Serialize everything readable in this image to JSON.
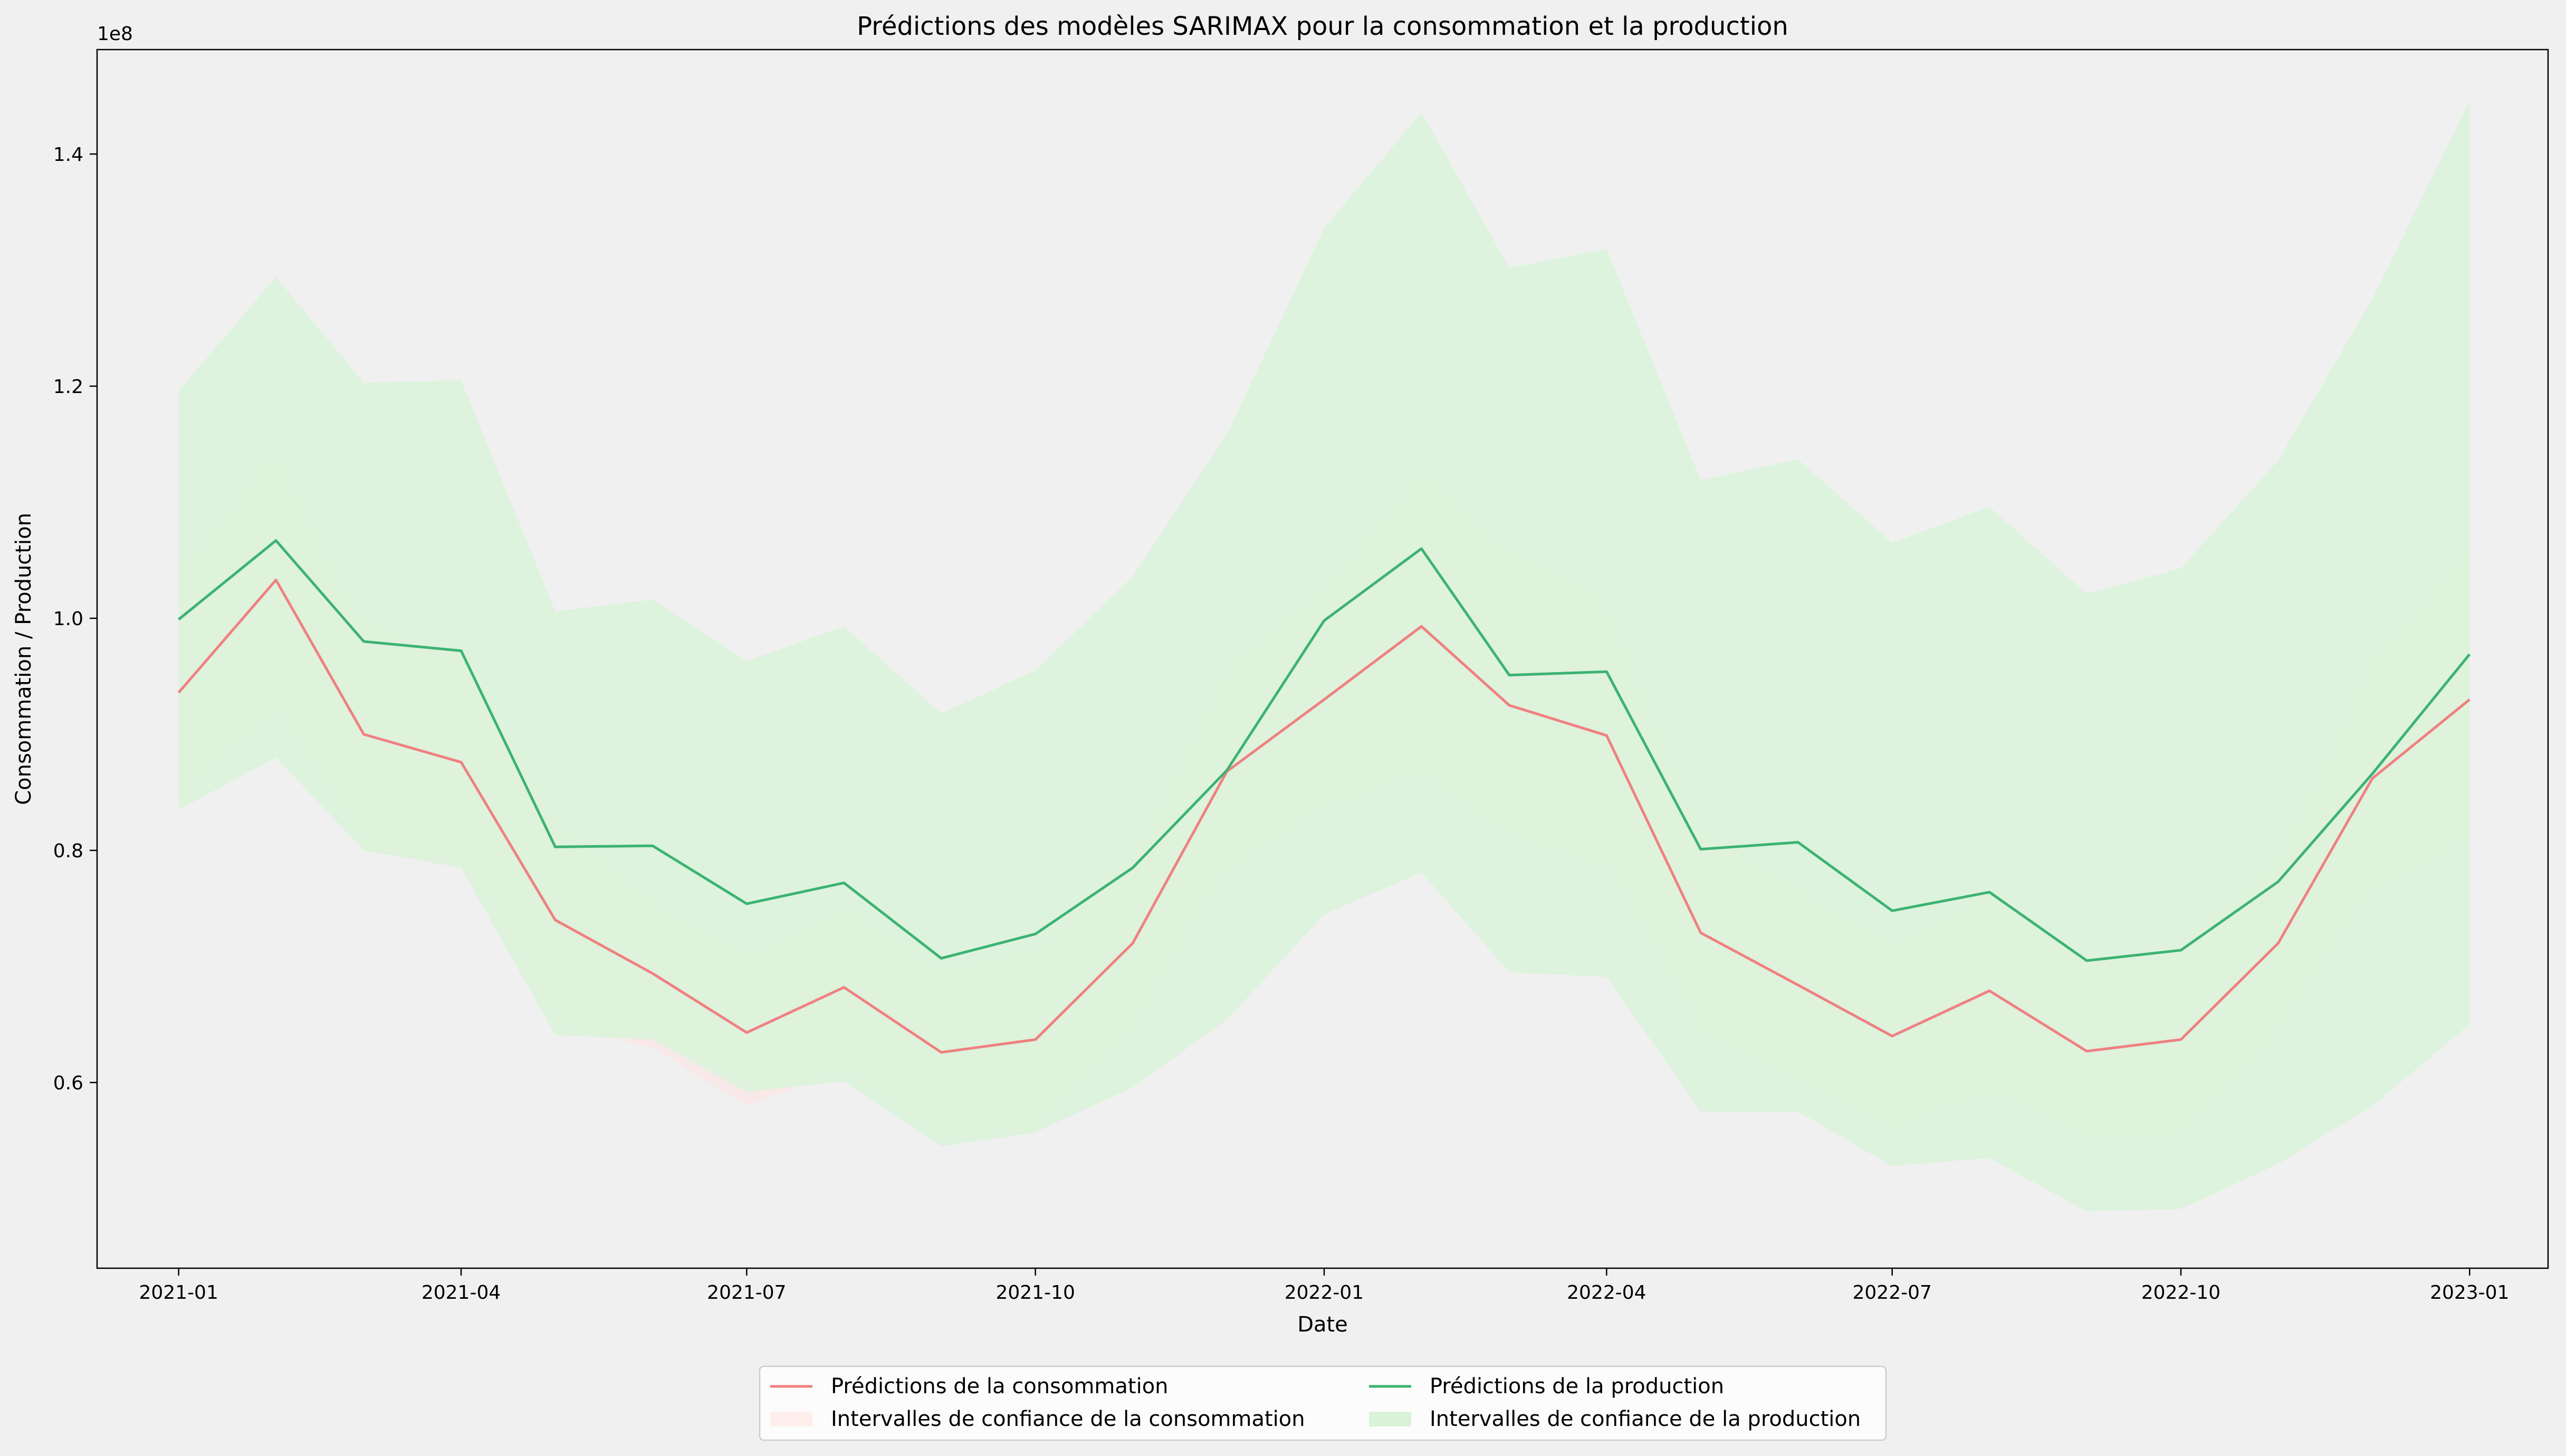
{
  "chart_data": {
    "type": "line",
    "title": "Prédictions des modèles SARIMAX pour la consommation et la production",
    "xlabel": "Date",
    "ylabel": "Consommation / Production",
    "y_multiplier_label": "1e8",
    "y_multiplier": 100000000,
    "ylim": [
      0.44,
      1.49
    ],
    "y_ticks": [
      0.6,
      0.8,
      1.0,
      1.2,
      1.4
    ],
    "y_tick_labels": [
      "0.6",
      "0.8",
      "1.0",
      "1.2",
      "1.4"
    ],
    "x_dates": [
      "2021-01",
      "2021-02",
      "2021-03",
      "2021-04",
      "2021-05",
      "2021-06",
      "2021-07",
      "2021-08",
      "2021-09",
      "2021-10",
      "2021-11",
      "2021-12",
      "2022-01",
      "2022-02",
      "2022-03",
      "2022-04",
      "2022-05",
      "2022-06",
      "2022-07",
      "2022-08",
      "2022-09",
      "2022-10",
      "2022-11",
      "2022-12",
      "2023-01"
    ],
    "x_ticks": [
      "2021-01",
      "2021-04",
      "2021-07",
      "2021-10",
      "2022-01",
      "2022-04",
      "2022-07",
      "2022-10",
      "2023-01"
    ],
    "xlim": [
      "2020-12-06",
      "2023-01-26"
    ],
    "grid": false,
    "legend_position": "bottom-center",
    "series": [
      {
        "name": "Prédictions de la consommation",
        "kind": "line",
        "color": "#f08080",
        "values": [
          0.936,
          1.033,
          0.9,
          0.876,
          0.74,
          0.694,
          0.643,
          0.682,
          0.626,
          0.637,
          0.72,
          0.868,
          0.93,
          0.993,
          0.925,
          0.899,
          0.729,
          0.684,
          0.64,
          0.679,
          0.627,
          0.637,
          0.72,
          0.862,
          0.93
        ]
      },
      {
        "name": "Intervalles de confiance de la consommation",
        "kind": "band",
        "color": "#ffe4e1",
        "lower": [
          0.84,
          0.92,
          0.8,
          0.785,
          0.65,
          0.63,
          0.58,
          0.61,
          0.55,
          0.56,
          0.64,
          0.78,
          0.835,
          0.865,
          0.81,
          0.785,
          0.64,
          0.6,
          0.56,
          0.59,
          0.55,
          0.555,
          0.64,
          0.76,
          0.81
        ],
        "upper": [
          1.04,
          1.15,
          1.0,
          0.97,
          0.83,
          0.76,
          0.71,
          0.755,
          0.7,
          0.715,
          0.8,
          0.96,
          1.03,
          1.13,
          1.06,
          1.02,
          0.82,
          0.77,
          0.72,
          0.765,
          0.705,
          0.72,
          0.8,
          0.97,
          1.06
        ]
      },
      {
        "name": "Prédictions de la production",
        "kind": "line",
        "color": "#3cb371",
        "values": [
          0.999,
          1.067,
          0.98,
          0.972,
          0.803,
          0.804,
          0.754,
          0.772,
          0.707,
          0.728,
          0.785,
          0.869,
          0.998,
          1.06,
          0.951,
          0.954,
          0.801,
          0.807,
          0.748,
          0.764,
          0.705,
          0.714,
          0.773,
          0.866,
          0.969
        ]
      },
      {
        "name": "Intervalles de confiance de la production",
        "kind": "band",
        "color": "#d9f3d9",
        "lower": [
          0.835,
          0.88,
          0.8,
          0.785,
          0.641,
          0.637,
          0.592,
          0.601,
          0.545,
          0.557,
          0.596,
          0.654,
          0.745,
          0.781,
          0.695,
          0.691,
          0.575,
          0.575,
          0.528,
          0.535,
          0.489,
          0.491,
          0.53,
          0.58,
          0.65
        ],
        "upper": [
          1.196,
          1.294,
          1.203,
          1.205,
          1.006,
          1.016,
          0.963,
          0.993,
          0.918,
          0.955,
          1.036,
          1.158,
          1.336,
          1.436,
          1.302,
          1.318,
          1.119,
          1.137,
          1.065,
          1.096,
          1.021,
          1.043,
          1.136,
          1.275,
          1.446
        ]
      }
    ]
  }
}
